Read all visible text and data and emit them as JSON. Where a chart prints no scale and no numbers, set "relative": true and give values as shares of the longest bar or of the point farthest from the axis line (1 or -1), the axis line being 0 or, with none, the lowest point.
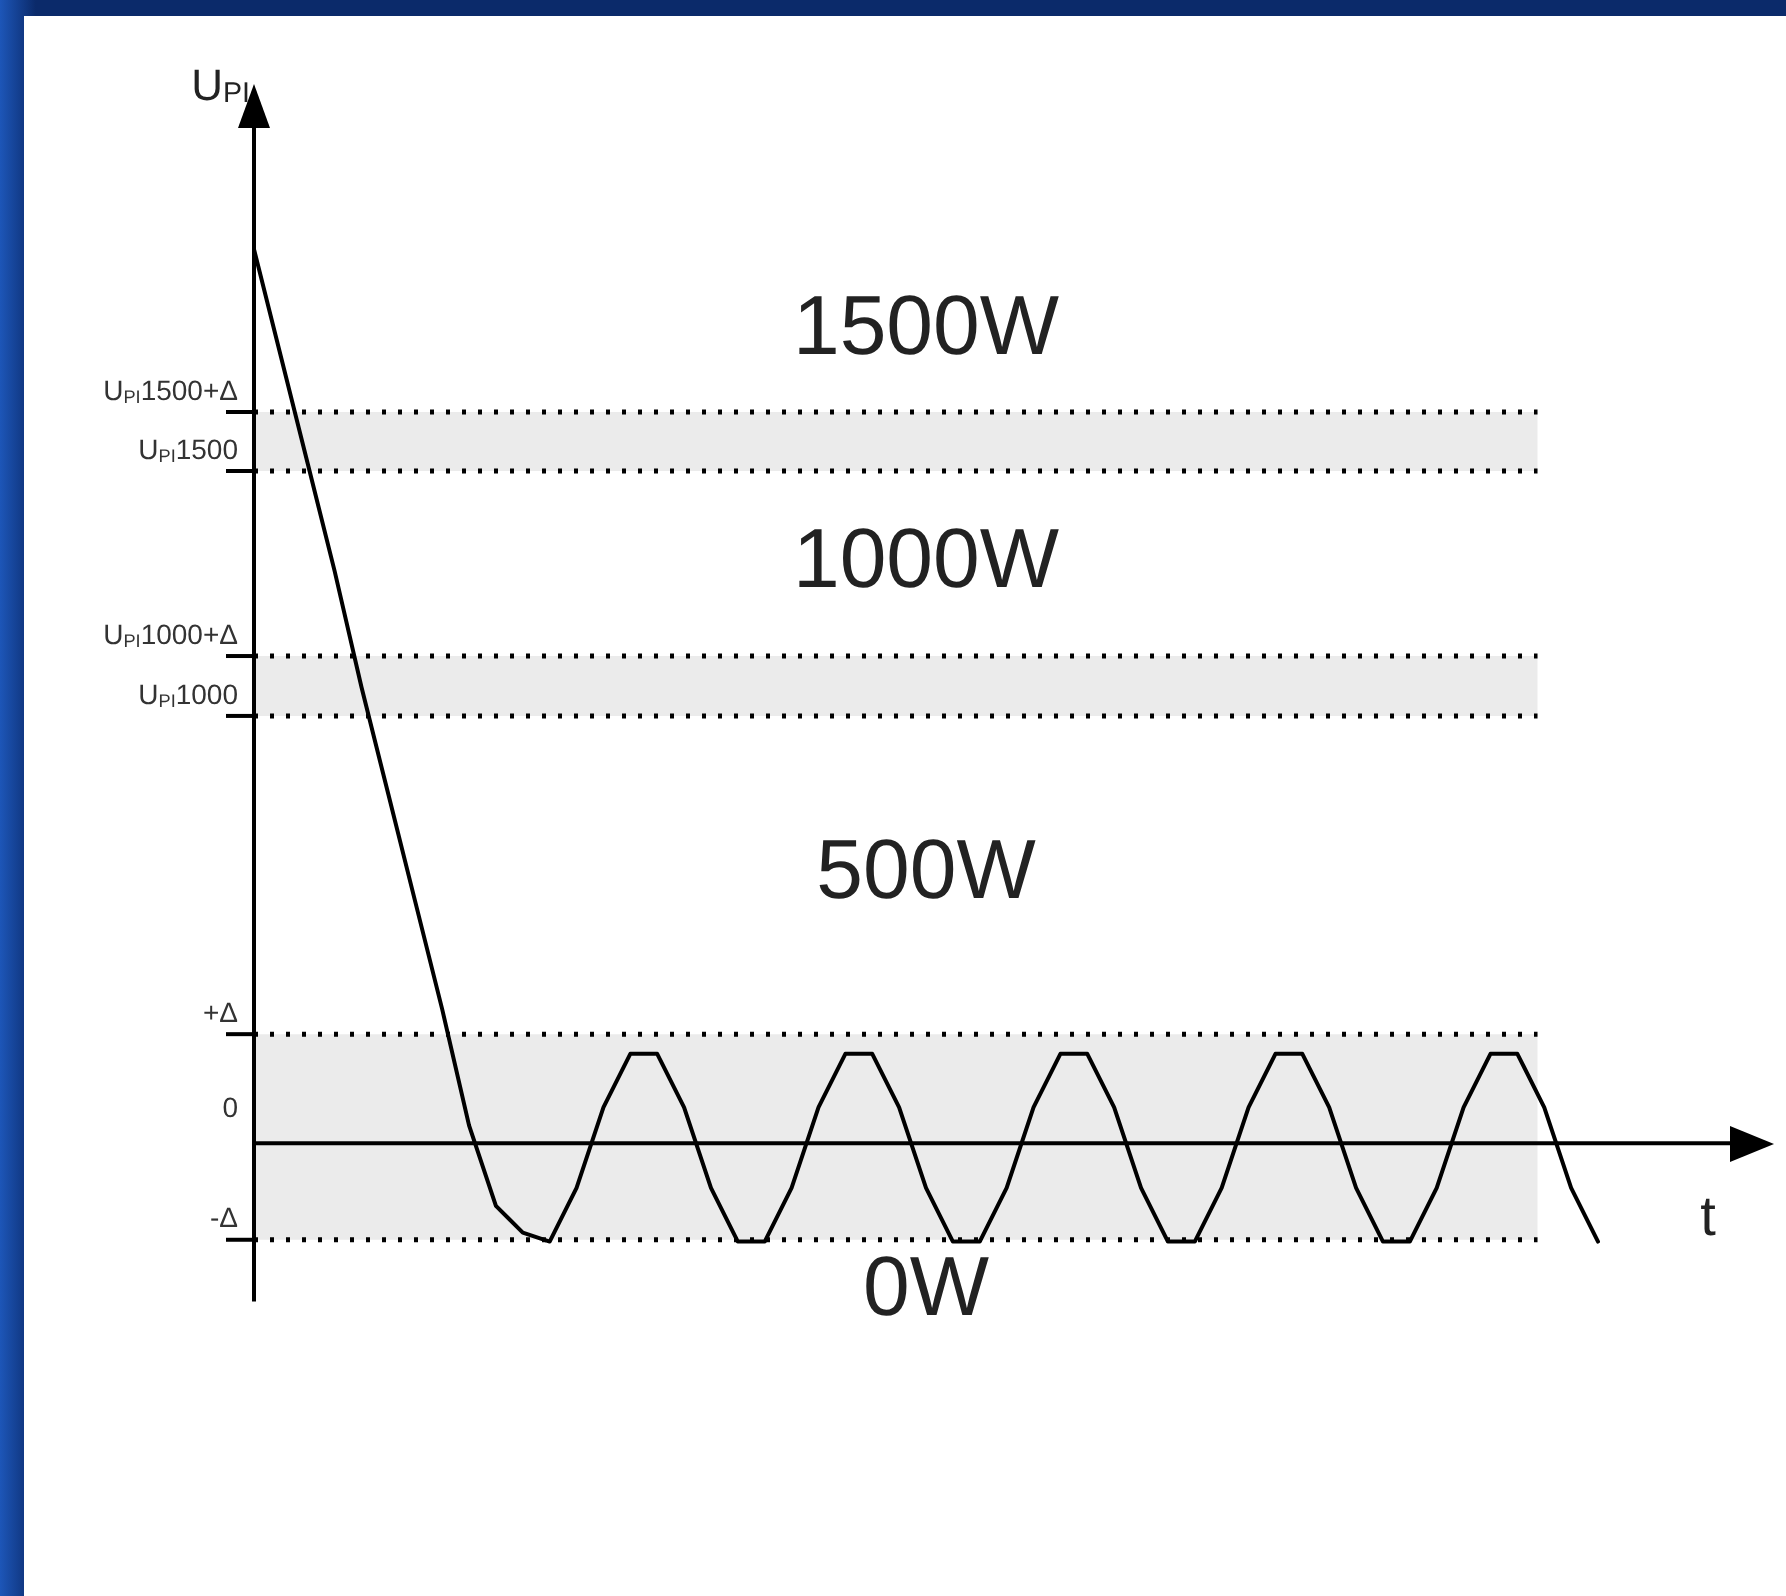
{
  "chart_data": {
    "type": "line",
    "relative": true,
    "xlabel": "t",
    "ylabel": "U$_{PI}$",
    "line_style": "solid",
    "categories": [
      null,
      null,
      null,
      null,
      null,
      null,
      null,
      null,
      null,
      null,
      null,
      null,
      null,
      null,
      null,
      null,
      null,
      null,
      null,
      null,
      null,
      null,
      null,
      null,
      null,
      null,
      null,
      null,
      null,
      null,
      null,
      null,
      null,
      null,
      null,
      null,
      null,
      null,
      null,
      null,
      null,
      null,
      null,
      null,
      null,
      null,
      null,
      null,
      null,
      null,
      null
    ],
    "series": [
      {
        "color": "#000000",
        "values": [
          1,
          0.88,
          0.76,
          0.64,
          0.51,
          0.39,
          0.27,
          0.15,
          0.02,
          -0.07,
          -0.1,
          -0.11,
          -0.05,
          0.04,
          0.1,
          0.1,
          0.04,
          -0.05,
          -0.11,
          -0.11,
          -0.05,
          0.04,
          0.1,
          0.1,
          0.04,
          -0.05,
          -0.11,
          -0.11,
          -0.05,
          0.04,
          0.1,
          0.1,
          0.04,
          -0.05,
          -0.11,
          -0.11,
          -0.05,
          0.04,
          0.1,
          0.1,
          0.04,
          -0.05,
          -0.11,
          -0.11,
          -0.05,
          0.04,
          0.1,
          0.1,
          0.04,
          -0.05,
          -0.11
        ]
      }
    ],
    "bands": [
      {
        "axis": "y",
        "from": 0.752,
        "to": 0.818,
        "color": "#ebebeb"
      },
      {
        "axis": "y",
        "from": 0.478,
        "to": 0.545,
        "color": "#ebebeb"
      },
      {
        "axis": "y",
        "from": -0.108,
        "to": 0.122,
        "color": "#ebebeb"
      }
    ],
    "ref_lines": [
      {
        "axis": "y",
        "value": 0.818,
        "label": "U$_{PI}$1500+Δ",
        "line_style": "dotted"
      },
      {
        "axis": "y",
        "value": 0.752,
        "label": "U$_{PI}$1500",
        "line_style": "dotted"
      },
      {
        "axis": "y",
        "value": 0.545,
        "label": "U$_{PI}$1000+Δ",
        "line_style": "dotted"
      },
      {
        "axis": "y",
        "value": 0.478,
        "label": "U$_{PI}$1000",
        "line_style": "dotted"
      },
      {
        "axis": "y",
        "value": 0.122,
        "label": "+Δ",
        "line_style": "dotted"
      },
      {
        "axis": "y",
        "value": 0,
        "label": "0",
        "line_style": "solid"
      },
      {
        "axis": "y",
        "value": -0.108,
        "label": "-Δ",
        "line_style": "dotted"
      }
    ],
    "annotations": [
      "1500W",
      "1000W",
      "500W",
      "0W"
    ]
  }
}
